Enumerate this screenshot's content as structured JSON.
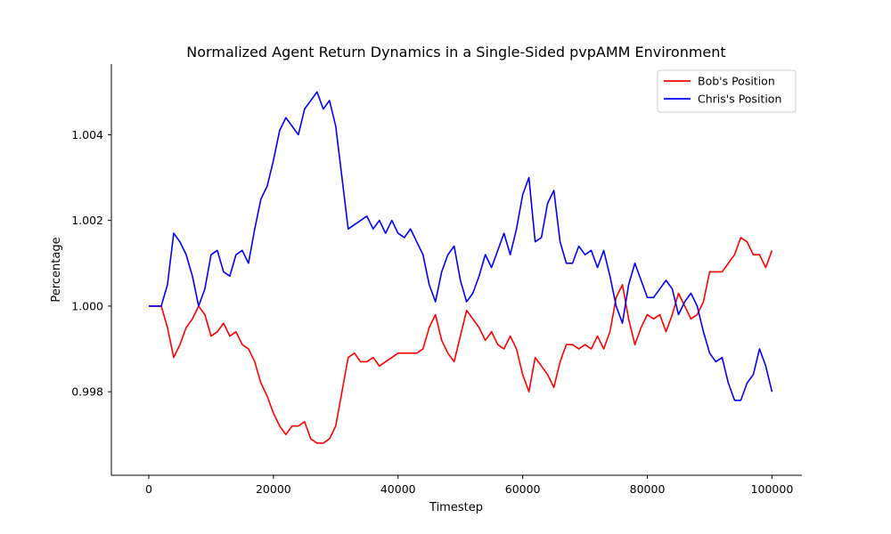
{
  "chart_data": {
    "type": "line",
    "title": "Normalized Agent Return Dynamics in a Single-Sided pvpAMM Environment",
    "xlabel": "Timestep",
    "ylabel": "Percentage",
    "xlim": [
      -6000,
      104800
    ],
    "ylim": [
      0.99605,
      1.00565
    ],
    "xticks": [
      0,
      20000,
      40000,
      60000,
      80000,
      100000
    ],
    "xtick_labels": [
      "0",
      "20000",
      "40000",
      "60000",
      "80000",
      "100000"
    ],
    "yticks": [
      0.998,
      1.0,
      1.002,
      1.004
    ],
    "ytick_labels": [
      "0.998",
      "1.000",
      "1.002",
      "1.004"
    ],
    "grid": false,
    "legend_position": "top-right",
    "series": [
      {
        "name": "Bob's Position",
        "color": "#ff0000",
        "x": [
          0,
          2000,
          3000,
          4000,
          5000,
          6000,
          7000,
          8000,
          9000,
          10000,
          11000,
          12000,
          13000,
          14000,
          15000,
          16000,
          17000,
          18000,
          19000,
          20000,
          21000,
          22000,
          23000,
          24000,
          25000,
          26000,
          27000,
          28000,
          29000,
          30000,
          31000,
          32000,
          33000,
          34000,
          35000,
          36000,
          37000,
          38000,
          39000,
          40000,
          41000,
          42000,
          43000,
          44000,
          45000,
          46000,
          47000,
          48000,
          49000,
          50000,
          51000,
          52000,
          53000,
          54000,
          55000,
          56000,
          57000,
          58000,
          59000,
          60000,
          61000,
          62000,
          63000,
          64000,
          65000,
          66000,
          67000,
          68000,
          69000,
          70000,
          71000,
          72000,
          73000,
          74000,
          75000,
          76000,
          77000,
          78000,
          79000,
          80000,
          81000,
          82000,
          83000,
          84000,
          85000,
          86000,
          87000,
          88000,
          89000,
          90000,
          91000,
          92000,
          93000,
          94000,
          95000,
          96000,
          97000,
          98000,
          99000,
          100000
        ],
        "values": [
          1.0,
          1.0,
          0.9995,
          0.9988,
          0.9991,
          0.9995,
          0.9997,
          1.0,
          0.9998,
          0.9993,
          0.9994,
          0.9996,
          0.9993,
          0.9994,
          0.9991,
          0.999,
          0.9987,
          0.9982,
          0.9979,
          0.9975,
          0.9972,
          0.997,
          0.9972,
          0.9972,
          0.9973,
          0.9969,
          0.9968,
          0.9968,
          0.9969,
          0.9972,
          0.998,
          0.9988,
          0.9989,
          0.9987,
          0.9987,
          0.9988,
          0.9986,
          0.9987,
          0.9988,
          0.9989,
          0.9989,
          0.9989,
          0.9989,
          0.999,
          0.9995,
          0.9998,
          0.9992,
          0.9989,
          0.9987,
          0.9993,
          0.9999,
          0.9997,
          0.9995,
          0.9992,
          0.9994,
          0.9991,
          0.999,
          0.9993,
          0.999,
          0.9984,
          0.998,
          0.9988,
          0.9986,
          0.9984,
          0.9981,
          0.9987,
          0.9991,
          0.9991,
          0.999,
          0.9991,
          0.999,
          0.9993,
          0.999,
          0.9994,
          1.0002,
          1.0005,
          0.9997,
          0.9991,
          0.9995,
          0.9998,
          0.9997,
          0.9998,
          0.9994,
          0.9998,
          1.0003,
          1.0,
          0.9997,
          0.9998,
          1.0001,
          1.0008,
          1.0008,
          1.0008,
          1.001,
          1.0012,
          1.0016,
          1.0015,
          1.0012,
          1.0012,
          1.0009,
          1.0013
        ]
      },
      {
        "name": "Chris's Position",
        "color": "#0000ff",
        "x": [
          0,
          2000,
          3000,
          4000,
          5000,
          6000,
          7000,
          8000,
          9000,
          10000,
          11000,
          12000,
          13000,
          14000,
          15000,
          16000,
          17000,
          18000,
          19000,
          20000,
          21000,
          22000,
          23000,
          24000,
          25000,
          26000,
          27000,
          28000,
          29000,
          30000,
          31000,
          32000,
          33000,
          34000,
          35000,
          36000,
          37000,
          38000,
          39000,
          40000,
          41000,
          42000,
          43000,
          44000,
          45000,
          46000,
          47000,
          48000,
          49000,
          50000,
          51000,
          52000,
          53000,
          54000,
          55000,
          56000,
          57000,
          58000,
          59000,
          60000,
          61000,
          62000,
          63000,
          64000,
          65000,
          66000,
          67000,
          68000,
          69000,
          70000,
          71000,
          72000,
          73000,
          74000,
          75000,
          76000,
          77000,
          78000,
          79000,
          80000,
          81000,
          82000,
          83000,
          84000,
          85000,
          86000,
          87000,
          88000,
          89000,
          90000,
          91000,
          92000,
          93000,
          94000,
          95000,
          96000,
          97000,
          98000,
          99000,
          100000
        ],
        "values": [
          1.0,
          1.0,
          1.0005,
          1.0017,
          1.0015,
          1.0012,
          1.0007,
          1.0,
          1.0004,
          1.0012,
          1.0013,
          1.0008,
          1.0007,
          1.0012,
          1.0013,
          1.001,
          1.0018,
          1.0025,
          1.0028,
          1.0034,
          1.0041,
          1.0044,
          1.0042,
          1.004,
          1.0046,
          1.0048,
          1.005,
          1.0046,
          1.0048,
          1.0042,
          1.003,
          1.0018,
          1.0019,
          1.002,
          1.0021,
          1.0018,
          1.002,
          1.0017,
          1.002,
          1.0017,
          1.0016,
          1.0018,
          1.0015,
          1.0012,
          1.0005,
          1.0001,
          1.0008,
          1.0012,
          1.0014,
          1.0006,
          1.0001,
          1.0003,
          1.0007,
          1.0012,
          1.0009,
          1.0013,
          1.0017,
          1.0012,
          1.0018,
          1.0026,
          1.003,
          1.0015,
          1.0016,
          1.0024,
          1.0027,
          1.0015,
          1.001,
          1.001,
          1.0014,
          1.0012,
          1.0013,
          1.0009,
          1.0013,
          1.0007,
          1.0,
          0.9996,
          1.0005,
          1.001,
          1.0006,
          1.0002,
          1.0002,
          1.0004,
          1.0006,
          1.0004,
          0.9998,
          1.0001,
          1.0003,
          1.0,
          0.9994,
          0.9989,
          0.9987,
          0.9988,
          0.9982,
          0.9978,
          0.9978,
          0.9982,
          0.9984,
          0.999,
          0.9986,
          0.998
        ]
      }
    ]
  }
}
